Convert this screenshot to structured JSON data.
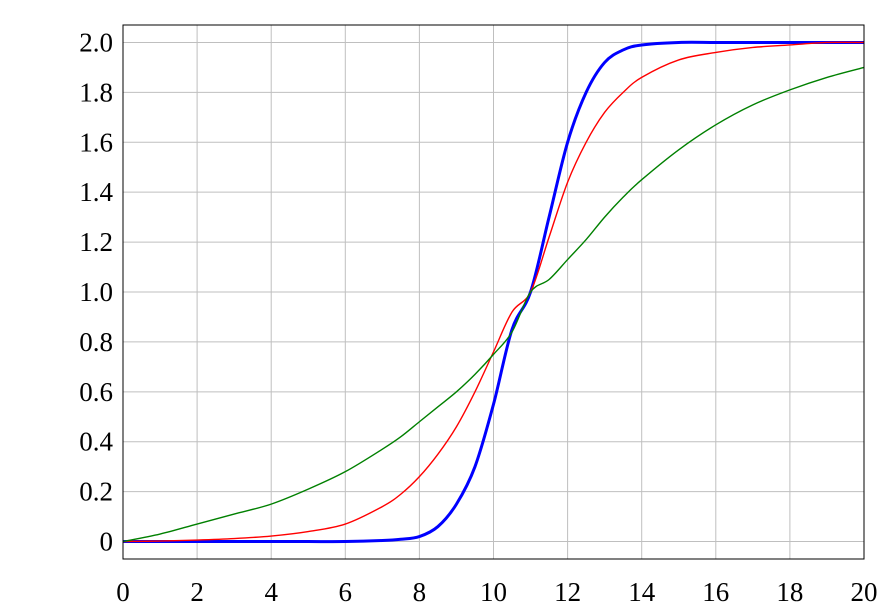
{
  "chart_data": {
    "type": "line",
    "title": "",
    "xlabel": "",
    "ylabel": "",
    "xlim": [
      0,
      20
    ],
    "ylim": [
      -0.07,
      2.07
    ],
    "grid": true,
    "legend": "none",
    "x_ticks": [
      0,
      2,
      4,
      6,
      8,
      10,
      12,
      14,
      16,
      18,
      20
    ],
    "x_tick_labels": [
      "0",
      "2",
      "4",
      "6",
      "8",
      "10",
      "12",
      "14",
      "16",
      "18",
      "20"
    ],
    "y_ticks": [
      0,
      0.2,
      0.4,
      0.6,
      0.8,
      1.0,
      1.2,
      1.4,
      1.6,
      1.8,
      2.0
    ],
    "y_tick_labels": [
      "0",
      "0.2",
      "0.4",
      "0.6",
      "0.8",
      "1.0",
      "1.2",
      "1.4",
      "1.6",
      "1.8",
      "2.0"
    ],
    "x": [
      0,
      1,
      2,
      3,
      4,
      5,
      6,
      7,
      7.5,
      8,
      8.5,
      9,
      9.5,
      10,
      10.5,
      11,
      11.5,
      12,
      12.5,
      13,
      13.5,
      14,
      15,
      16,
      17,
      18,
      19,
      20
    ],
    "series": [
      {
        "color": "#0000ff",
        "values": [
          0,
          0,
          0,
          0,
          0,
          0,
          0,
          0.004,
          0.009,
          0.02,
          0.06,
          0.15,
          0.3,
          0.55,
          0.85,
          1.0,
          1.3,
          1.6,
          1.8,
          1.92,
          1.97,
          1.99,
          2.0,
          2.0,
          2.0,
          2.0,
          2.0,
          2.0
        ]
      },
      {
        "color": "#ff0000",
        "values": [
          0,
          0.002,
          0.006,
          0.012,
          0.022,
          0.04,
          0.07,
          0.14,
          0.19,
          0.26,
          0.35,
          0.46,
          0.6,
          0.76,
          0.92,
          1.0,
          1.22,
          1.44,
          1.6,
          1.72,
          1.8,
          1.86,
          1.93,
          1.96,
          1.98,
          1.99,
          2.0,
          2.0
        ]
      },
      {
        "color": "#008000",
        "values": [
          0,
          0.03,
          0.07,
          0.11,
          0.15,
          0.21,
          0.28,
          0.37,
          0.42,
          0.48,
          0.54,
          0.6,
          0.67,
          0.75,
          0.84,
          1.0,
          1.05,
          1.13,
          1.21,
          1.3,
          1.38,
          1.45,
          1.57,
          1.67,
          1.75,
          1.81,
          1.86,
          1.9
        ]
      }
    ]
  }
}
